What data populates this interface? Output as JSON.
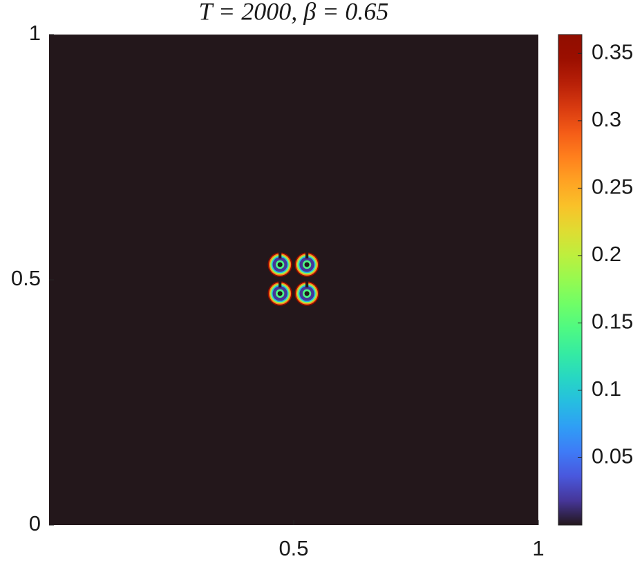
{
  "chart_data": {
    "type": "heatmap",
    "title": "T = 2000,  β = 0.65",
    "xlim": [
      0,
      1
    ],
    "ylim": [
      0,
      1
    ],
    "xticks": [
      0.5,
      1
    ],
    "yticks": [
      0,
      0.5,
      1
    ],
    "colormap": "turbo",
    "clim": [
      0,
      0.364
    ],
    "cticks": [
      0.05,
      0.1,
      0.15,
      0.2,
      0.25,
      0.3,
      0.35
    ],
    "background_value": 0,
    "blobs": [
      {
        "x": 0.472,
        "y": 0.531,
        "r": 0.025,
        "value": 0.36
      },
      {
        "x": 0.527,
        "y": 0.531,
        "r": 0.025,
        "value": 0.36
      },
      {
        "x": 0.472,
        "y": 0.472,
        "r": 0.025,
        "value": 0.36
      },
      {
        "x": 0.527,
        "y": 0.472,
        "r": 0.025,
        "value": 0.36
      }
    ]
  }
}
